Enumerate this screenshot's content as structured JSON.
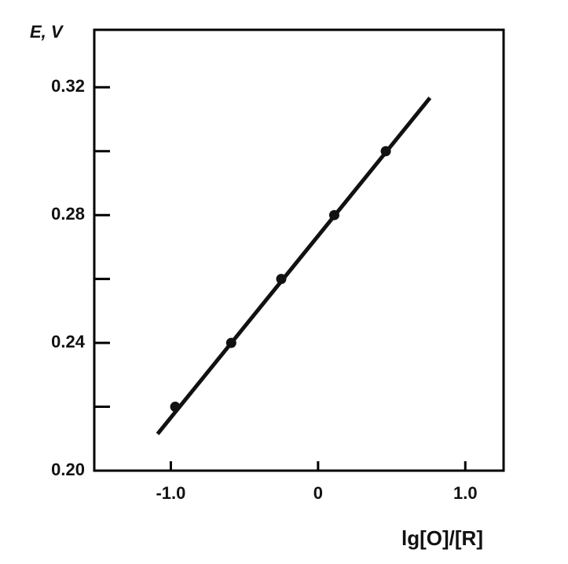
{
  "chart_data": {
    "type": "scatter",
    "y_label": "E, V",
    "x_label": "lg[O]/[R]",
    "x": [
      -0.97,
      -0.59,
      -0.25,
      0.11,
      0.46
    ],
    "values": [
      0.22,
      0.24,
      0.26,
      0.28,
      0.3
    ],
    "color": "#111111",
    "fit_line": {
      "x": [
        -1.09,
        0.76
      ],
      "y": [
        0.2115,
        0.3167
      ]
    },
    "xlim": [
      -1.52,
      1.26
    ],
    "ylim": [
      0.2,
      0.338
    ],
    "xticks": [
      {
        "value": -1,
        "label": "-1.0"
      },
      0,
      {
        "value": 1,
        "label": "1.0"
      }
    ],
    "yticks": [
      {
        "value": 0.2,
        "label": "0.20"
      },
      0.24,
      0.28,
      0.32
    ],
    "y_minor_ticks": [
      0.22,
      0.26,
      0.3
    ]
  }
}
